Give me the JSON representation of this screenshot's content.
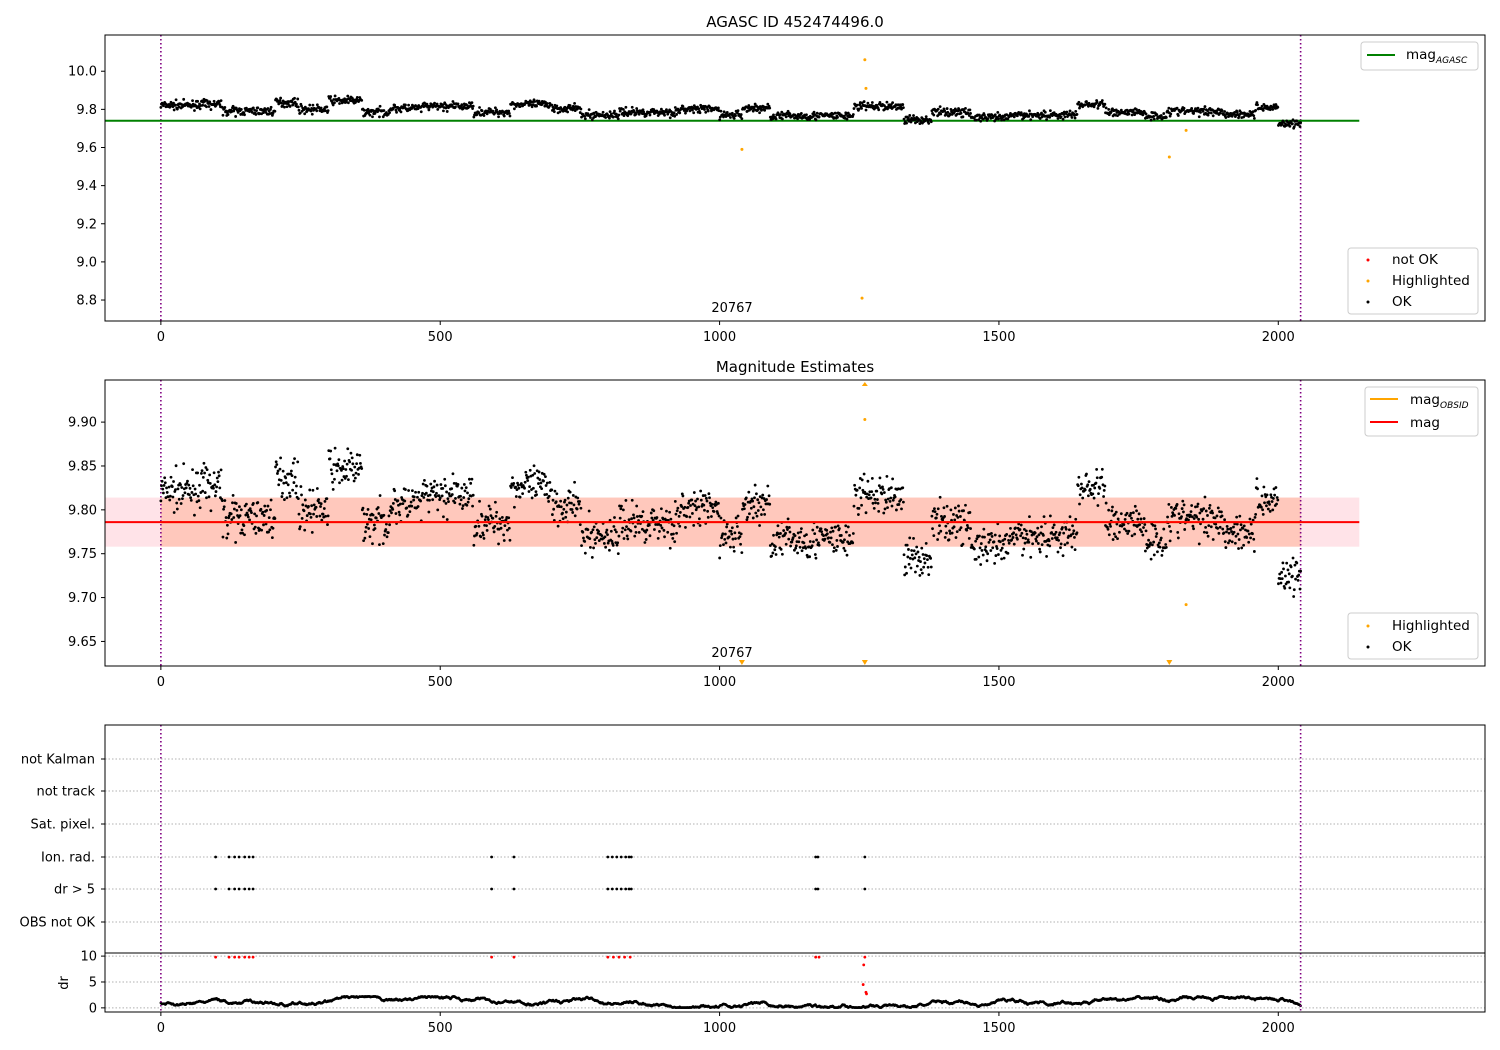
{
  "chart_data": [
    {
      "type": "scatter",
      "title": "AGASC ID 452474496.0",
      "xlim": [
        -100,
        2370
      ],
      "ylim": [
        8.69,
        10.19
      ],
      "xticks": [
        "0",
        "500",
        "1000",
        "1500",
        "2000"
      ],
      "yticks": [
        "8.8",
        "9.0",
        "9.2",
        "9.4",
        "9.6",
        "9.8",
        "10.0"
      ],
      "obs_boundaries": [
        0,
        2040
      ],
      "obsid_label": {
        "text": "20767",
        "x": 1020
      },
      "mag_agasc": 9.74,
      "legend_top": {
        "label": "mag",
        "sub": "AGASC"
      },
      "legend_bottom": [
        "not OK",
        "Highlighted",
        "OK"
      ],
      "highlighted_points": [
        [
          1040,
          9.59
        ],
        [
          1255,
          8.81
        ],
        [
          1260,
          10.06
        ],
        [
          1262,
          9.91
        ],
        [
          1805,
          9.55
        ],
        [
          1835,
          9.69
        ]
      ],
      "ok_series_description": "OK",
      "colors": {
        "ok": "#000000",
        "highlighted": "#ffa500",
        "not_ok": "#ff0000",
        "agasc": "#008000",
        "boundary": "#800080"
      }
    },
    {
      "type": "scatter",
      "title": "Magnitude Estimates",
      "xlim": [
        -100,
        2370
      ],
      "ylim": [
        9.622,
        9.948
      ],
      "xticks": [
        "0",
        "500",
        "1000",
        "1500",
        "2000"
      ],
      "yticks": [
        "9.65",
        "9.70",
        "9.75",
        "9.80",
        "9.85",
        "9.90"
      ],
      "obs_boundaries": [
        0,
        2040
      ],
      "obsid_label": {
        "text": "20767",
        "x": 1020
      },
      "mag": 9.786,
      "mag_band": [
        9.758,
        9.814
      ],
      "legend_top": [
        {
          "label": "mag",
          "sub": "OBSID"
        },
        {
          "label": "mag"
        }
      ],
      "legend_bottom": [
        "Highlighted",
        "OK"
      ],
      "highlighted_points": [
        [
          1260,
          9.903
        ],
        [
          1835,
          9.692
        ]
      ],
      "clipped_high_x": [
        1260
      ],
      "clipped_low_x": [
        1040,
        1260,
        1805
      ],
      "colors": {
        "ok": "#000000",
        "highlighted": "#ffa500",
        "mag": "#ff0000",
        "mag_obsid": "#ffa500",
        "band": "#ffc0cb",
        "band_obs": "#ffa07a",
        "boundary": "#800080"
      }
    },
    {
      "type": "scatter",
      "title": "",
      "xlim": [
        -100,
        2370
      ],
      "flag_rows": [
        "not Kalman",
        "not track",
        "Sat. pixel.",
        "Ion. rad.",
        "dr > 5",
        "OBS not OK"
      ],
      "flag_clusters": [
        {
          "x": [
            98,
            122,
            132,
            140,
            150,
            158,
            165
          ],
          "rows": [
            "Ion. rad.",
            "dr > 5"
          ]
        },
        {
          "x": [
            592,
            632
          ],
          "rows": [
            "Ion. rad.",
            "dr > 5"
          ]
        },
        {
          "x": [
            800,
            808,
            816,
            824,
            832,
            838,
            842
          ],
          "rows": [
            "Ion. rad.",
            "dr > 5"
          ]
        },
        {
          "x": [
            1172,
            1176
          ],
          "rows": [
            "Ion. rad.",
            "dr > 5"
          ]
        },
        {
          "x": [
            1260
          ],
          "rows": [
            "Ion. rad.",
            "dr > 5"
          ]
        }
      ],
      "dr_ylabel": "dr",
      "dr_yticks": [
        "0",
        "5",
        "10"
      ],
      "dr_ylim": [
        -0.8,
        10.6
      ],
      "dr_outliers": [
        [
          98,
          9.8
        ],
        [
          122,
          9.8
        ],
        [
          132,
          9.8
        ],
        [
          140,
          9.8
        ],
        [
          150,
          9.8
        ],
        [
          158,
          9.8
        ],
        [
          165,
          9.8
        ],
        [
          592,
          9.8
        ],
        [
          632,
          9.8
        ],
        [
          800,
          9.8
        ],
        [
          810,
          9.8
        ],
        [
          820,
          9.8
        ],
        [
          830,
          9.8
        ],
        [
          840,
          9.8
        ],
        [
          1172,
          9.8
        ],
        [
          1178,
          9.8
        ],
        [
          1258,
          8.3
        ],
        [
          1260,
          9.8
        ],
        [
          1257,
          4.5
        ],
        [
          1262,
          3.0
        ],
        [
          1263,
          2.7
        ]
      ],
      "xticks": [
        "0",
        "500",
        "1000",
        "1500",
        "2000"
      ],
      "obs_boundaries": [
        0,
        2040
      ]
    }
  ]
}
